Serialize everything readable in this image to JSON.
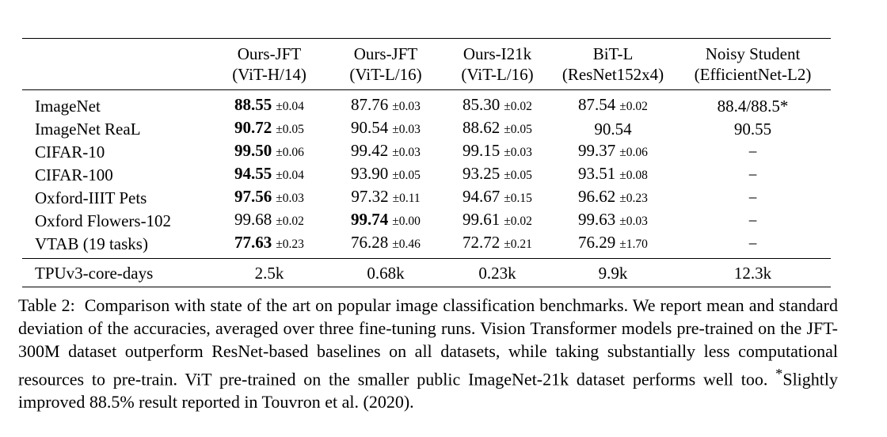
{
  "table": {
    "columns": [
      {
        "line1": "Ours-JFT",
        "line2": "(ViT-H/14)"
      },
      {
        "line1": "Ours-JFT",
        "line2": "(ViT-L/16)"
      },
      {
        "line1": "Ours-I21k",
        "line2": "(ViT-L/16)"
      },
      {
        "line1": "BiT-L",
        "line2": "(ResNet152x4)"
      },
      {
        "line1": "Noisy Student",
        "line2": "(EfficientNet-L2)"
      }
    ],
    "rows": [
      {
        "dataset": "ImageNet",
        "cells": [
          {
            "main": "88.55",
            "sd": "±0.04",
            "bold": true
          },
          {
            "main": "87.76",
            "sd": "±0.03",
            "bold": false
          },
          {
            "main": "85.30",
            "sd": "±0.02",
            "bold": false
          },
          {
            "main": "87.54",
            "sd": "±0.02",
            "bold": false
          },
          {
            "main": "88.4/88.5*",
            "sd": "",
            "bold": false
          }
        ]
      },
      {
        "dataset": "ImageNet ReaL",
        "cells": [
          {
            "main": "90.72",
            "sd": "±0.05",
            "bold": true
          },
          {
            "main": "90.54",
            "sd": "±0.03",
            "bold": false
          },
          {
            "main": "88.62",
            "sd": "±0.05",
            "bold": false
          },
          {
            "main": "90.54",
            "sd": "",
            "bold": false
          },
          {
            "main": "90.55",
            "sd": "",
            "bold": false
          }
        ]
      },
      {
        "dataset": "CIFAR-10",
        "cells": [
          {
            "main": "99.50",
            "sd": "±0.06",
            "bold": true
          },
          {
            "main": "99.42",
            "sd": "±0.03",
            "bold": false
          },
          {
            "main": "99.15",
            "sd": "±0.03",
            "bold": false
          },
          {
            "main": "99.37",
            "sd": "±0.06",
            "bold": false
          },
          {
            "main": "−",
            "sd": "",
            "bold": false
          }
        ]
      },
      {
        "dataset": "CIFAR-100",
        "cells": [
          {
            "main": "94.55",
            "sd": "±0.04",
            "bold": true
          },
          {
            "main": "93.90",
            "sd": "±0.05",
            "bold": false
          },
          {
            "main": "93.25",
            "sd": "±0.05",
            "bold": false
          },
          {
            "main": "93.51",
            "sd": "±0.08",
            "bold": false
          },
          {
            "main": "−",
            "sd": "",
            "bold": false
          }
        ]
      },
      {
        "dataset": "Oxford-IIIT Pets",
        "cells": [
          {
            "main": "97.56",
            "sd": "±0.03",
            "bold": true
          },
          {
            "main": "97.32",
            "sd": "±0.11",
            "bold": false
          },
          {
            "main": "94.67",
            "sd": "±0.15",
            "bold": false
          },
          {
            "main": "96.62",
            "sd": "±0.23",
            "bold": false
          },
          {
            "main": "−",
            "sd": "",
            "bold": false
          }
        ]
      },
      {
        "dataset": "Oxford Flowers-102",
        "cells": [
          {
            "main": "99.68",
            "sd": "±0.02",
            "bold": false
          },
          {
            "main": "99.74",
            "sd": "±0.00",
            "bold": true
          },
          {
            "main": "99.61",
            "sd": "±0.02",
            "bold": false
          },
          {
            "main": "99.63",
            "sd": "±0.03",
            "bold": false
          },
          {
            "main": "−",
            "sd": "",
            "bold": false
          }
        ]
      },
      {
        "dataset": "VTAB (19 tasks)",
        "cells": [
          {
            "main": "77.63",
            "sd": "±0.23",
            "bold": true
          },
          {
            "main": "76.28",
            "sd": "±0.46",
            "bold": false
          },
          {
            "main": "72.72",
            "sd": "±0.21",
            "bold": false
          },
          {
            "main": "76.29",
            "sd": "±1.70",
            "bold": false
          },
          {
            "main": "−",
            "sd": "",
            "bold": false
          }
        ]
      }
    ],
    "footer": {
      "label": "TPUv3-core-days",
      "values": [
        "2.5k",
        "0.68k",
        "0.23k",
        "9.9k",
        "12.3k"
      ]
    }
  },
  "caption": {
    "label": "Table 2:",
    "body": "Comparison with state of the art on popular image classification benchmarks. We report mean and standard deviation of the accuracies, averaged over three fine-tuning runs. Vision Transformer models pre-trained on the JFT-300M dataset outperform ResNet-based baselines on all datasets, while taking substantially less computational resources to pre-train. ViT pre-trained on the smaller public ImageNet-21k dataset performs well too.",
    "footnote_mark": "*",
    "footnote": "Slightly improved 88.5% result reported in Touvron et al. (2020)."
  }
}
